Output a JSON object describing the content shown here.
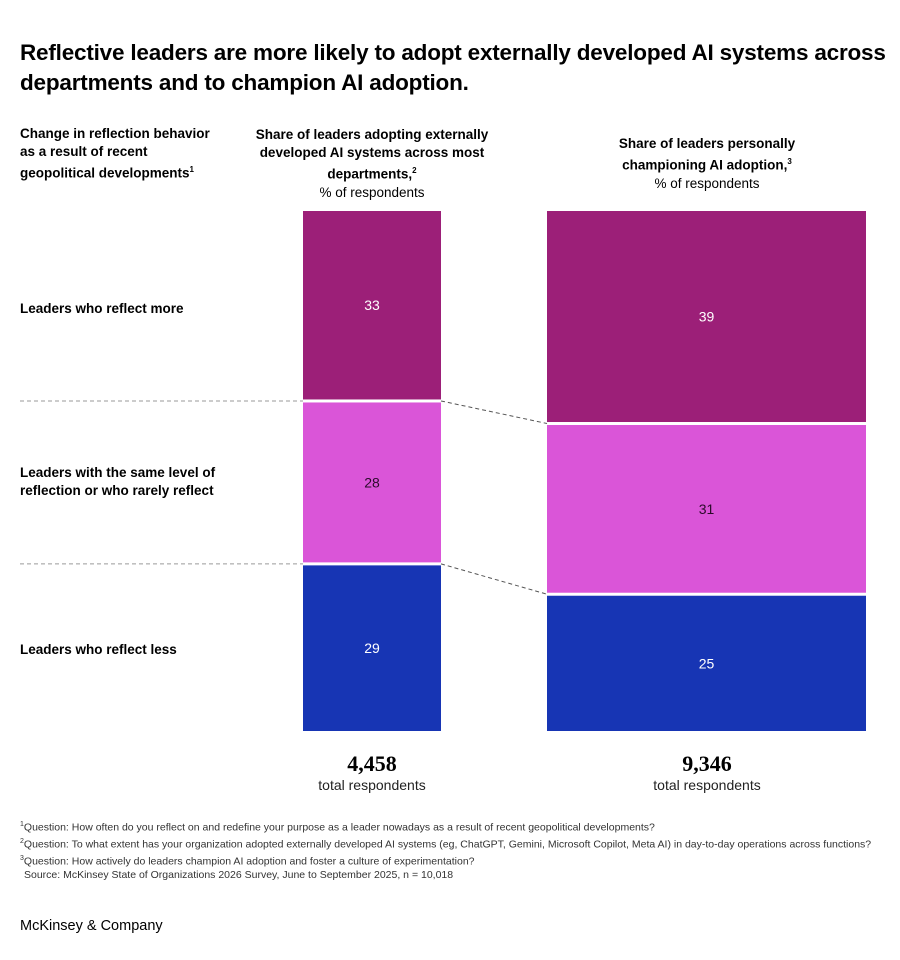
{
  "title": "Reflective leaders are more likely to adopt externally developed AI systems across departments and to champion AI adoption.",
  "row_header": "Change in reflection behavior as a result of recent geopolitical developments",
  "row_header_sup": "1",
  "chart_data": {
    "type": "bar",
    "stacked": true,
    "categories": [
      "Leaders who reflect more",
      "Leaders with the same level of reflection or who rarely reflect",
      "Leaders who reflect less"
    ],
    "columns": [
      {
        "title": "Share of leaders adopting externally developed AI systems across most departments,",
        "title_sup": "2",
        "unit": "% of respondents",
        "values": [
          33,
          28,
          29
        ],
        "total_number": "4,458",
        "total_label": "total respondents"
      },
      {
        "title": "Share of leaders personally championing AI adoption,",
        "title_sup": "3",
        "unit": "% of respondents",
        "values": [
          39,
          31,
          25
        ],
        "total_number": "9,346",
        "total_label": "total respondents"
      }
    ],
    "colors": [
      "#9c1f78",
      "#da55d8",
      "#1735b4"
    ],
    "label_colors": [
      "#ffffff",
      "#2a0a2a",
      "#ffffff"
    ],
    "connector_style": "dashed",
    "connector_color": "#9a9a9a"
  },
  "footnotes": [
    {
      "sup": "1",
      "text": "Question: How often do you reflect on and redefine your purpose as a leader nowadays as a result of recent geopolitical developments?"
    },
    {
      "sup": "2",
      "text": "Question: To what extent has your organization adopted externally developed AI systems (eg, ChatGPT, Gemini, Microsoft Copilot, Meta AI) in day-to-day operations across functions?"
    },
    {
      "sup": "3",
      "text": "Question: How actively do leaders champion AI adoption and foster a culture of experimentation?"
    }
  ],
  "source": "Source: McKinsey State of Organizations 2026 Survey, June to September 2025, n = 10,018",
  "brand": "McKinsey & Company"
}
